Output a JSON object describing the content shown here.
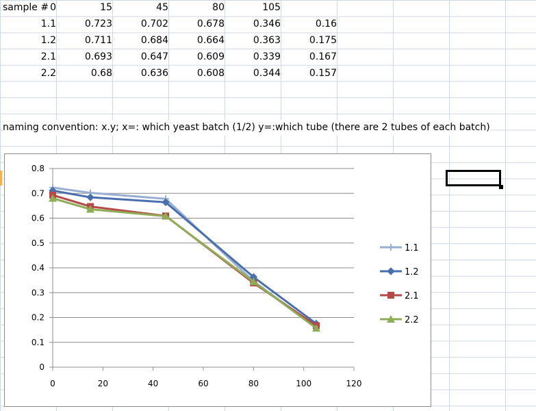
{
  "table": {
    "header": [
      "sample #",
      "0",
      "15",
      "45",
      "80",
      "105"
    ],
    "rows": [
      {
        "id": "1.1",
        "values": [
          "0.723",
          "0.702",
          "0.678",
          "0.346",
          "0.16"
        ]
      },
      {
        "id": "1.2",
        "values": [
          "0.711",
          "0.684",
          "0.664",
          "0.363",
          "0.175"
        ]
      },
      {
        "id": "2.1",
        "values": [
          "0.693",
          "0.647",
          "0.609",
          "0.339",
          "0.167"
        ]
      },
      {
        "id": "2.2",
        "values": [
          "0.68",
          "0.636",
          "0.608",
          "0.344",
          "0.157"
        ]
      }
    ]
  },
  "note": "naming convention: x.y; x=: which yeast batch (1/2) y=:which tube (there are 2 tubes of each batch)",
  "chart_data": {
    "type": "line",
    "title": "",
    "xlabel": "",
    "ylabel": "",
    "x": [
      0,
      15,
      45,
      80,
      105
    ],
    "xlim": [
      0,
      120
    ],
    "ylim": [
      0,
      0.8
    ],
    "x_ticks": [
      "0",
      "20",
      "40",
      "60",
      "80",
      "100",
      "120"
    ],
    "y_ticks": [
      "0",
      "0.1",
      "0.2",
      "0.3",
      "0.4",
      "0.5",
      "0.6",
      "0.7",
      "0.8"
    ],
    "grid": "horizontal",
    "legend": "right",
    "series": [
      {
        "name": "1.1",
        "values": [
          0.723,
          0.702,
          0.678,
          0.346,
          0.16
        ],
        "color": "#98aed3",
        "marker": "plus"
      },
      {
        "name": "1.2",
        "values": [
          0.711,
          0.684,
          0.664,
          0.363,
          0.175
        ],
        "color": "#4a6fae",
        "marker": "diamond"
      },
      {
        "name": "2.1",
        "values": [
          0.693,
          0.647,
          0.609,
          0.339,
          0.167
        ],
        "color": "#b64a47",
        "marker": "square"
      },
      {
        "name": "2.2",
        "values": [
          0.68,
          0.636,
          0.608,
          0.344,
          0.157
        ],
        "color": "#8fad57",
        "marker": "triangle"
      }
    ]
  }
}
